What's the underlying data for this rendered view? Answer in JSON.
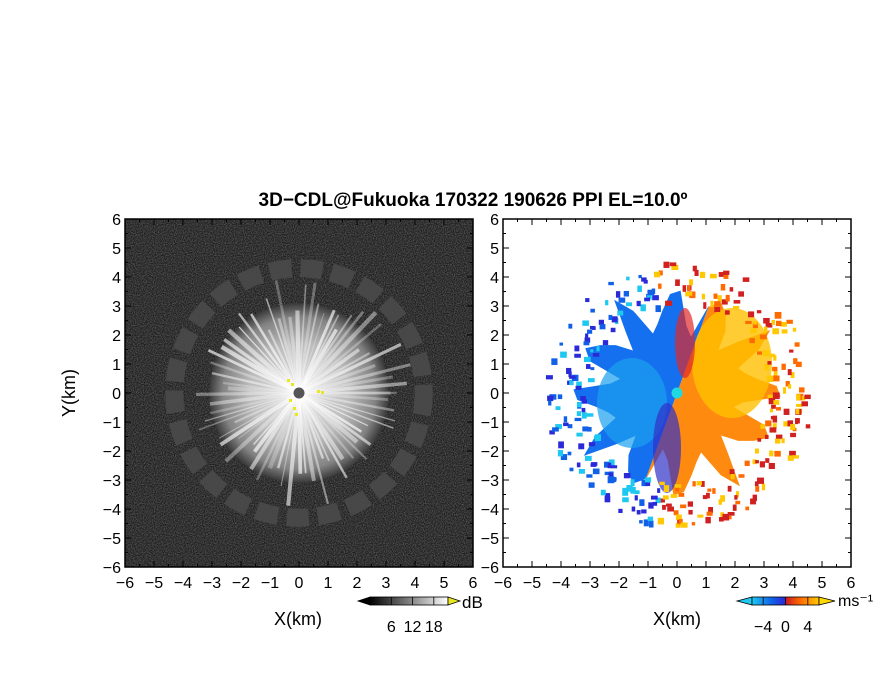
{
  "figure": {
    "title": "3D−CDL@Fukuoka 170322 190626 PPI EL=10.0º"
  },
  "chart_data": [
    {
      "type": "heatmap",
      "panel": "left",
      "quantity": "reflectivity",
      "xlabel": "X(km)",
      "ylabel": "Y(km)",
      "xlim": [
        -6,
        6
      ],
      "ylim": [
        -6,
        6
      ],
      "x_ticks": [
        "−6",
        "−5",
        "−4",
        "−3",
        "−2",
        "−1",
        "0",
        "1",
        "2",
        "3",
        "4",
        "5",
        "6"
      ],
      "y_ticks": [
        "6",
        "5",
        "4",
        "3",
        "2",
        "1",
        "0",
        "−1",
        "−2",
        "−3",
        "−4",
        "−5",
        "−6"
      ],
      "radar_site": [
        0,
        0
      ],
      "echo_disk_radius_km": 3.1,
      "ring_radius_km": 4.3,
      "colorbar": {
        "label": "dB",
        "ticks": [
          "6",
          "12",
          "18"
        ],
        "tick_values": [
          6,
          12,
          18
        ],
        "range": [
          0,
          22
        ],
        "colormap": [
          "#000000",
          "#ffffff"
        ],
        "overflow_color": "#e8e820"
      }
    },
    {
      "type": "heatmap",
      "panel": "right",
      "quantity": "doppler velocity",
      "xlabel": "X(km)",
      "xlim": [
        -6,
        6
      ],
      "ylim": [
        -6,
        6
      ],
      "x_ticks": [
        "−6",
        "−5",
        "−4",
        "−3",
        "−2",
        "−1",
        "0",
        "1",
        "2",
        "3",
        "4",
        "5",
        "6"
      ],
      "y_ticks": [
        "6",
        "5",
        "4",
        "3",
        "2",
        "1",
        "0",
        "−1",
        "−2",
        "−3",
        "−4",
        "−5",
        "−6"
      ],
      "radar_site": [
        0,
        0
      ],
      "echo_radius_km": 3.4,
      "colorbar": {
        "label": "ms⁻¹",
        "ticks": [
          "−4",
          "0",
          "4"
        ],
        "tick_values": [
          -4,
          0,
          4
        ],
        "range": [
          -6,
          6
        ],
        "colormap": [
          "#1fc8f0",
          "#1060e8",
          "#2a2ad8",
          "#d02020",
          "#ff6a00",
          "#ffc800"
        ]
      }
    }
  ]
}
